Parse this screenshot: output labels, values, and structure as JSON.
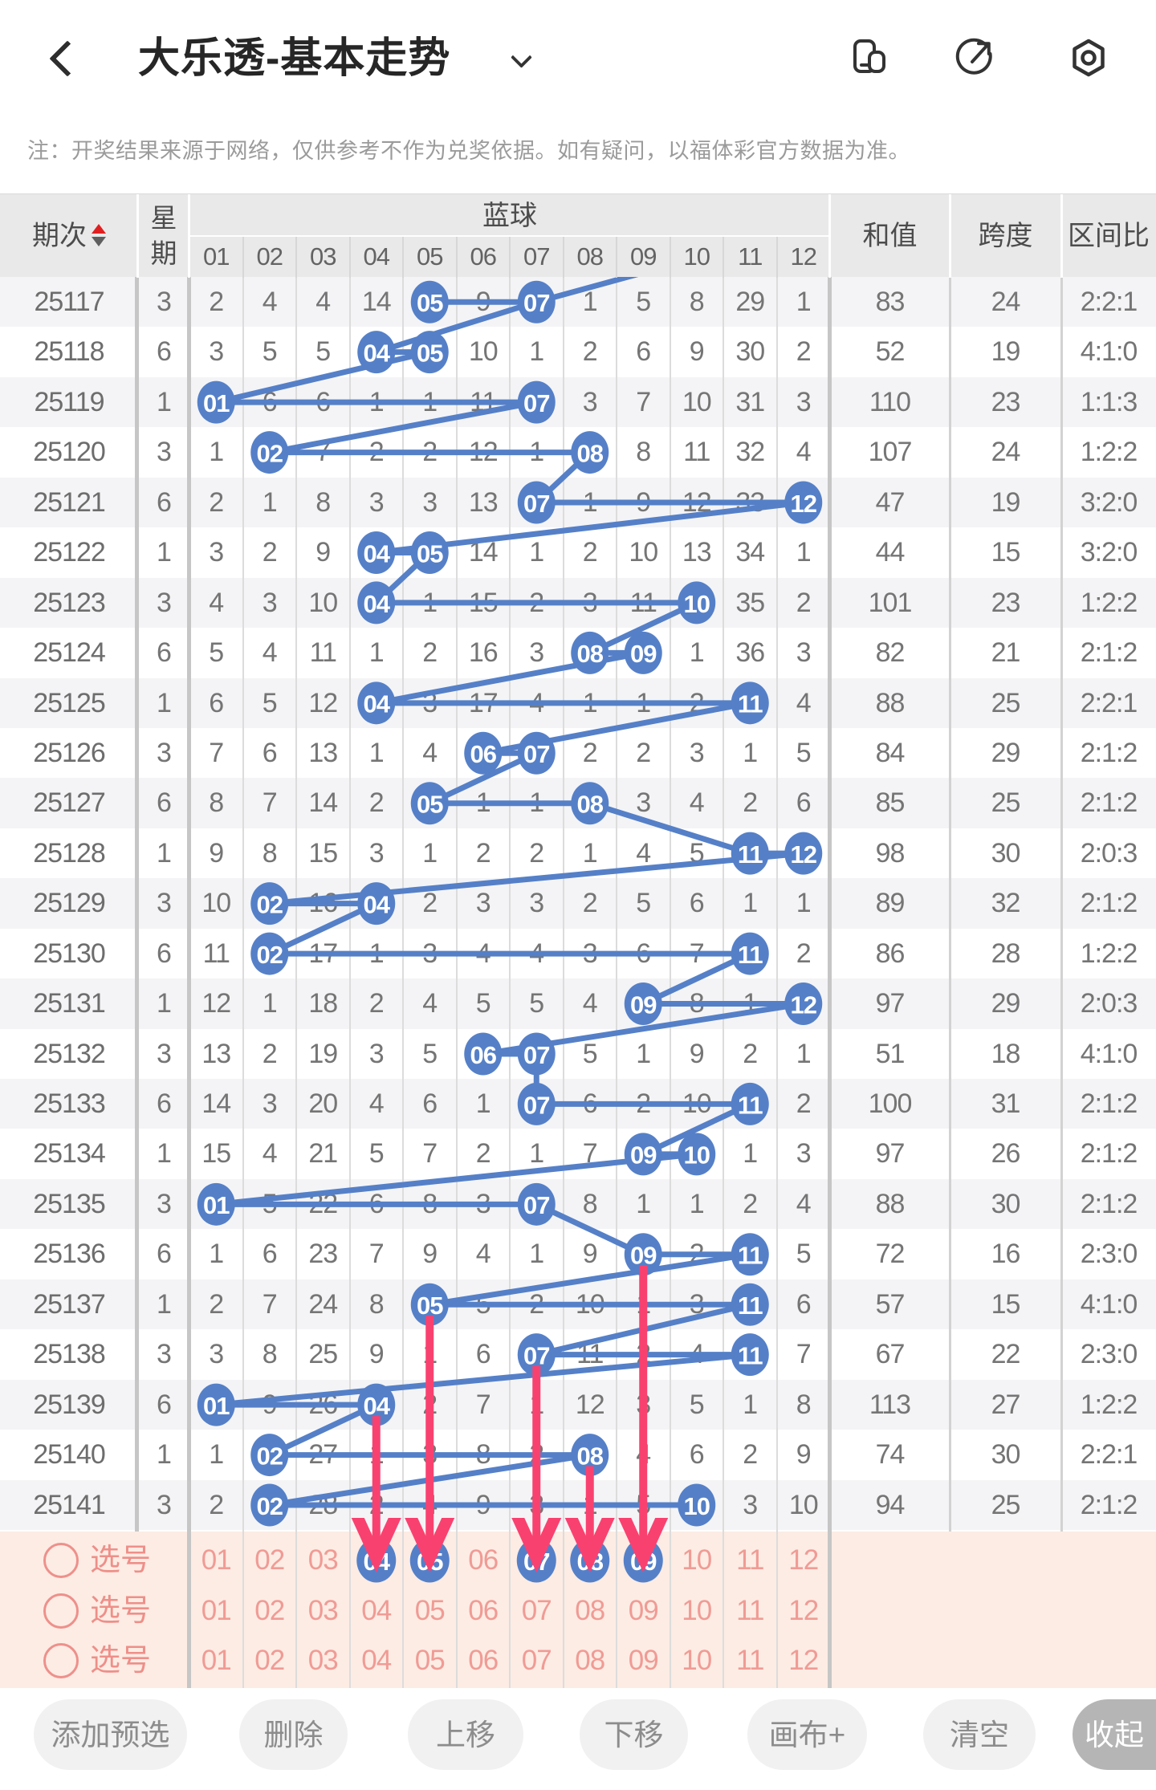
{
  "header": {
    "title": "大乐透-基本走势",
    "icons": [
      "back-icon",
      "dropdown-caret-icon",
      "rotate-screen-icon",
      "share-icon",
      "settings-icon"
    ]
  },
  "notice": "注：开奖结果来源于网络，仅供参考不作为兑奖依据。如有疑问，以福体彩官方数据为准。",
  "colors": {
    "ball_blue": "#5580c8",
    "arrow_pink": "#f94170",
    "selection_red": "#ee8f89",
    "selection_pink_bg": "#fcece4",
    "sort_up_red": "#e02020"
  },
  "table": {
    "col_headers": {
      "period": "期次",
      "week": "星期",
      "blue": "蓝球",
      "sum": "和值",
      "span": "跨度",
      "ratio": "区间比"
    },
    "ball_numbers": [
      "01",
      "02",
      "03",
      "04",
      "05",
      "06",
      "07",
      "08",
      "09",
      "10",
      "11",
      "12"
    ],
    "rows": [
      {
        "period": "25117",
        "week": "3",
        "cells": [
          "2",
          "4",
          "4",
          "14",
          "05",
          "9",
          "07",
          "1",
          "5",
          "8",
          "29",
          "1"
        ],
        "drawn": [
          5,
          7
        ],
        "sum": "83",
        "span": "24",
        "ratio": "2:2:1"
      },
      {
        "period": "25118",
        "week": "6",
        "cells": [
          "3",
          "5",
          "5",
          "04",
          "05",
          "10",
          "1",
          "2",
          "6",
          "9",
          "30",
          "2"
        ],
        "drawn": [
          4,
          5
        ],
        "sum": "52",
        "span": "19",
        "ratio": "4:1:0"
      },
      {
        "period": "25119",
        "week": "1",
        "cells": [
          "01",
          "6",
          "6",
          "1",
          "1",
          "11",
          "07",
          "3",
          "7",
          "10",
          "31",
          "3"
        ],
        "drawn": [
          1,
          7
        ],
        "sum": "110",
        "span": "23",
        "ratio": "1:1:3"
      },
      {
        "period": "25120",
        "week": "3",
        "cells": [
          "1",
          "02",
          "7",
          "2",
          "2",
          "12",
          "1",
          "08",
          "8",
          "11",
          "32",
          "4"
        ],
        "drawn": [
          2,
          8
        ],
        "sum": "107",
        "span": "24",
        "ratio": "1:2:2"
      },
      {
        "period": "25121",
        "week": "6",
        "cells": [
          "2",
          "1",
          "8",
          "3",
          "3",
          "13",
          "07",
          "1",
          "9",
          "12",
          "33",
          "12"
        ],
        "drawn": [
          7,
          12
        ],
        "sum": "47",
        "span": "19",
        "ratio": "3:2:0"
      },
      {
        "period": "25122",
        "week": "1",
        "cells": [
          "3",
          "2",
          "9",
          "04",
          "05",
          "14",
          "1",
          "2",
          "10",
          "13",
          "34",
          "1"
        ],
        "drawn": [
          4,
          5
        ],
        "sum": "44",
        "span": "15",
        "ratio": "3:2:0"
      },
      {
        "period": "25123",
        "week": "3",
        "cells": [
          "4",
          "3",
          "10",
          "04",
          "1",
          "15",
          "2",
          "3",
          "11",
          "10",
          "35",
          "2"
        ],
        "drawn": [
          4,
          10
        ],
        "sum": "101",
        "span": "23",
        "ratio": "1:2:2"
      },
      {
        "period": "25124",
        "week": "6",
        "cells": [
          "5",
          "4",
          "11",
          "1",
          "2",
          "16",
          "3",
          "08",
          "09",
          "1",
          "36",
          "3"
        ],
        "drawn": [
          8,
          9
        ],
        "sum": "82",
        "span": "21",
        "ratio": "2:1:2"
      },
      {
        "period": "25125",
        "week": "1",
        "cells": [
          "6",
          "5",
          "12",
          "04",
          "3",
          "17",
          "4",
          "1",
          "1",
          "2",
          "11",
          "4"
        ],
        "drawn": [
          4,
          11
        ],
        "sum": "88",
        "span": "25",
        "ratio": "2:2:1"
      },
      {
        "period": "25126",
        "week": "3",
        "cells": [
          "7",
          "6",
          "13",
          "1",
          "4",
          "06",
          "07",
          "2",
          "2",
          "3",
          "1",
          "5"
        ],
        "drawn": [
          6,
          7
        ],
        "sum": "84",
        "span": "29",
        "ratio": "2:1:2"
      },
      {
        "period": "25127",
        "week": "6",
        "cells": [
          "8",
          "7",
          "14",
          "2",
          "05",
          "1",
          "1",
          "08",
          "3",
          "4",
          "2",
          "6"
        ],
        "drawn": [
          5,
          8
        ],
        "sum": "85",
        "span": "25",
        "ratio": "2:1:2"
      },
      {
        "period": "25128",
        "week": "1",
        "cells": [
          "9",
          "8",
          "15",
          "3",
          "1",
          "2",
          "2",
          "1",
          "4",
          "5",
          "11",
          "12"
        ],
        "drawn": [
          11,
          12
        ],
        "sum": "98",
        "span": "30",
        "ratio": "2:0:3"
      },
      {
        "period": "25129",
        "week": "3",
        "cells": [
          "10",
          "02",
          "16",
          "04",
          "2",
          "3",
          "3",
          "2",
          "5",
          "6",
          "1",
          "1"
        ],
        "drawn": [
          2,
          4
        ],
        "sum": "89",
        "span": "32",
        "ratio": "2:1:2"
      },
      {
        "period": "25130",
        "week": "6",
        "cells": [
          "11",
          "02",
          "17",
          "1",
          "3",
          "4",
          "4",
          "3",
          "6",
          "7",
          "11",
          "2"
        ],
        "drawn": [
          2,
          11
        ],
        "sum": "86",
        "span": "28",
        "ratio": "1:2:2"
      },
      {
        "period": "25131",
        "week": "1",
        "cells": [
          "12",
          "1",
          "18",
          "2",
          "4",
          "5",
          "5",
          "4",
          "09",
          "8",
          "1",
          "12"
        ],
        "drawn": [
          9,
          12
        ],
        "sum": "97",
        "span": "29",
        "ratio": "2:0:3"
      },
      {
        "period": "25132",
        "week": "3",
        "cells": [
          "13",
          "2",
          "19",
          "3",
          "5",
          "06",
          "07",
          "5",
          "1",
          "9",
          "2",
          "1"
        ],
        "drawn": [
          6,
          7
        ],
        "sum": "51",
        "span": "18",
        "ratio": "4:1:0"
      },
      {
        "period": "25133",
        "week": "6",
        "cells": [
          "14",
          "3",
          "20",
          "4",
          "6",
          "1",
          "07",
          "6",
          "2",
          "10",
          "11",
          "2"
        ],
        "drawn": [
          7,
          11
        ],
        "sum": "100",
        "span": "31",
        "ratio": "2:1:2"
      },
      {
        "period": "25134",
        "week": "1",
        "cells": [
          "15",
          "4",
          "21",
          "5",
          "7",
          "2",
          "1",
          "7",
          "09",
          "10",
          "1",
          "3"
        ],
        "drawn": [
          9,
          10
        ],
        "sum": "97",
        "span": "26",
        "ratio": "2:1:2"
      },
      {
        "period": "25135",
        "week": "3",
        "cells": [
          "01",
          "5",
          "22",
          "6",
          "8",
          "3",
          "07",
          "8",
          "1",
          "1",
          "2",
          "4"
        ],
        "drawn": [
          1,
          7
        ],
        "sum": "88",
        "span": "30",
        "ratio": "2:1:2"
      },
      {
        "period": "25136",
        "week": "6",
        "cells": [
          "1",
          "6",
          "23",
          "7",
          "9",
          "4",
          "1",
          "9",
          "09",
          "2",
          "11",
          "5"
        ],
        "drawn": [
          9,
          11
        ],
        "sum": "72",
        "span": "16",
        "ratio": "2:3:0"
      },
      {
        "period": "25137",
        "week": "1",
        "cells": [
          "2",
          "7",
          "24",
          "8",
          "05",
          "5",
          "2",
          "10",
          "1",
          "3",
          "11",
          "6"
        ],
        "drawn": [
          5,
          11
        ],
        "sum": "57",
        "span": "15",
        "ratio": "4:1:0"
      },
      {
        "period": "25138",
        "week": "3",
        "cells": [
          "3",
          "8",
          "25",
          "9",
          "1",
          "6",
          "07",
          "11",
          "2",
          "4",
          "11",
          "7"
        ],
        "drawn": [
          7,
          11
        ],
        "sum": "67",
        "span": "22",
        "ratio": "2:3:0"
      },
      {
        "period": "25139",
        "week": "6",
        "cells": [
          "01",
          "9",
          "26",
          "04",
          "2",
          "7",
          "1",
          "12",
          "3",
          "5",
          "1",
          "8"
        ],
        "drawn": [
          1,
          4
        ],
        "sum": "113",
        "span": "27",
        "ratio": "1:2:2"
      },
      {
        "period": "25140",
        "week": "1",
        "cells": [
          "1",
          "02",
          "27",
          "1",
          "3",
          "8",
          "2",
          "08",
          "4",
          "6",
          "2",
          "9"
        ],
        "drawn": [
          2,
          8
        ],
        "sum": "74",
        "span": "30",
        "ratio": "2:2:1"
      },
      {
        "period": "25141",
        "week": "3",
        "cells": [
          "2",
          "02",
          "28",
          "2",
          "4",
          "9",
          "3",
          "1",
          "5",
          "10",
          "3",
          "10"
        ],
        "drawn": [
          2,
          10
        ],
        "sum": "94",
        "span": "25",
        "ratio": "2:1:2"
      }
    ]
  },
  "arrows": [
    {
      "ball": 9,
      "from_row": 20
    },
    {
      "ball": 5,
      "from_row": 21
    },
    {
      "ball": 7,
      "from_row": 22
    },
    {
      "ball": 4,
      "from_row": 23
    },
    {
      "ball": 8,
      "from_row": 24
    }
  ],
  "selection": {
    "label": "选号",
    "numbers": [
      "01",
      "02",
      "03",
      "04",
      "05",
      "06",
      "07",
      "08",
      "09",
      "10",
      "11",
      "12"
    ],
    "rows": [
      {
        "selected": [
          4,
          5,
          7,
          8,
          9
        ]
      },
      {
        "selected": []
      },
      {
        "selected": []
      }
    ]
  },
  "toolbar": {
    "buttons": [
      "添加预选",
      "删除",
      "上移",
      "下移",
      "画布+",
      "清空",
      "收起"
    ]
  }
}
